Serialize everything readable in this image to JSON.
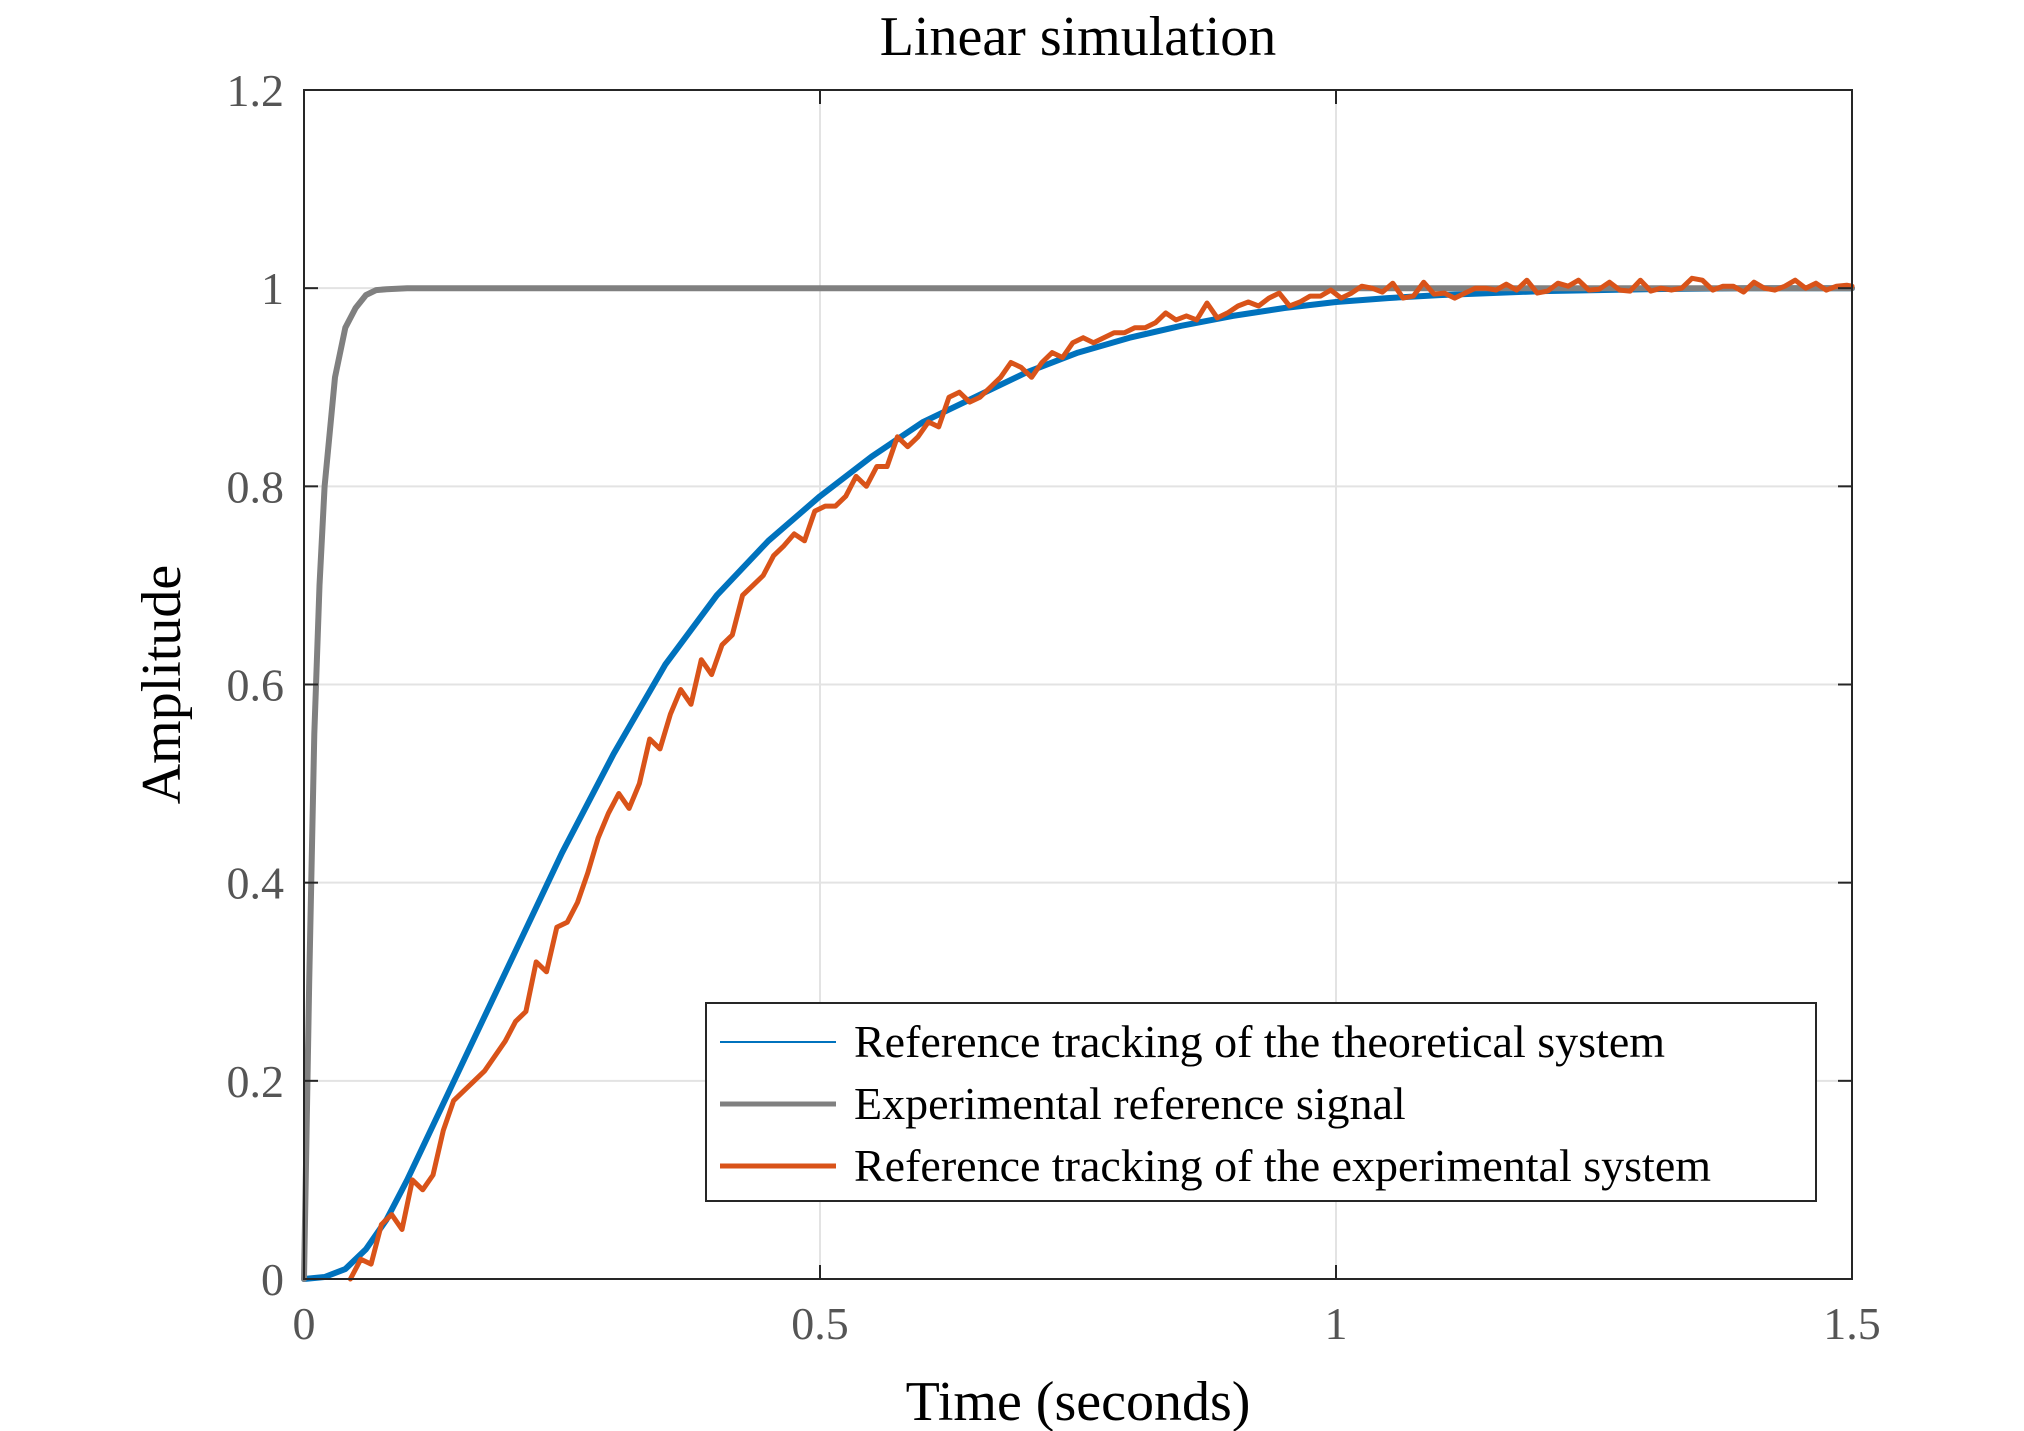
{
  "chart_data": {
    "type": "line",
    "title": "Linear simulation",
    "xlabel": "Time (seconds)",
    "ylabel": "Amplitude",
    "xlim": [
      0,
      1.5
    ],
    "ylim": [
      0,
      1.2
    ],
    "xticks": [
      0,
      0.5,
      1,
      1.5
    ],
    "xtick_labels": [
      "0",
      "0.5",
      "1",
      "1.5"
    ],
    "yticks": [
      0,
      0.2,
      0.4,
      0.6,
      0.8,
      1,
      1.2
    ],
    "ytick_labels": [
      "0",
      "0.2",
      "0.4",
      "0.6",
      "0.8",
      "1",
      "1.2"
    ],
    "grid": true,
    "legend_position": "bottom-right",
    "series": [
      {
        "name": "Reference tracking of the theoretical system",
        "color": "#0072BD",
        "x": [
          0,
          0.02,
          0.04,
          0.06,
          0.08,
          0.1,
          0.125,
          0.15,
          0.175,
          0.2,
          0.25,
          0.3,
          0.35,
          0.4,
          0.45,
          0.5,
          0.55,
          0.6,
          0.65,
          0.7,
          0.75,
          0.8,
          0.85,
          0.9,
          0.95,
          1,
          1.05,
          1.1,
          1.2,
          1.3,
          1.4,
          1.5
        ],
        "y": [
          0,
          0.002,
          0.01,
          0.03,
          0.06,
          0.1,
          0.155,
          0.21,
          0.265,
          0.32,
          0.43,
          0.53,
          0.62,
          0.69,
          0.745,
          0.79,
          0.83,
          0.865,
          0.89,
          0.915,
          0.935,
          0.95,
          0.962,
          0.972,
          0.98,
          0.986,
          0.99,
          0.993,
          0.997,
          0.999,
          1.0,
          1.0
        ]
      },
      {
        "name": "Experimental reference signal",
        "color": "#808080",
        "x": [
          0,
          0.005,
          0.01,
          0.015,
          0.02,
          0.03,
          0.04,
          0.05,
          0.06,
          0.07,
          0.08,
          0.1,
          0.15,
          1.5
        ],
        "y": [
          0,
          0.3,
          0.55,
          0.7,
          0.8,
          0.91,
          0.96,
          0.98,
          0.993,
          0.998,
          0.999,
          1.0,
          1.0,
          1.0
        ]
      },
      {
        "name": "Reference tracking of the experimental system",
        "color": "#D95319",
        "x": [
          0.045,
          0.055,
          0.065,
          0.075,
          0.085,
          0.095,
          0.105,
          0.115,
          0.125,
          0.135,
          0.145,
          0.155,
          0.165,
          0.175,
          0.185,
          0.195,
          0.205,
          0.215,
          0.225,
          0.235,
          0.245,
          0.255,
          0.265,
          0.275,
          0.285,
          0.295,
          0.305,
          0.315,
          0.325,
          0.335,
          0.345,
          0.355,
          0.365,
          0.375,
          0.385,
          0.395,
          0.405,
          0.415,
          0.425,
          0.435,
          0.445,
          0.455,
          0.465,
          0.475,
          0.485,
          0.495,
          0.505,
          0.515,
          0.525,
          0.535,
          0.545,
          0.555,
          0.565,
          0.575,
          0.585,
          0.595,
          0.605,
          0.615,
          0.625,
          0.635,
          0.645,
          0.655,
          0.665,
          0.675,
          0.685,
          0.695,
          0.705,
          0.715,
          0.725,
          0.735,
          0.745,
          0.755,
          0.765,
          0.775,
          0.785,
          0.795,
          0.805,
          0.815,
          0.825,
          0.835,
          0.845,
          0.855,
          0.865,
          0.875,
          0.885,
          0.895,
          0.905,
          0.915,
          0.925,
          0.935,
          0.945,
          0.955,
          0.965,
          0.975,
          0.985,
          0.995,
          1.005,
          1.015,
          1.025,
          1.035,
          1.045,
          1.055,
          1.065,
          1.075,
          1.085,
          1.095,
          1.105,
          1.115,
          1.125,
          1.135,
          1.145,
          1.155,
          1.165,
          1.175,
          1.185,
          1.195,
          1.205,
          1.215,
          1.225,
          1.235,
          1.245,
          1.255,
          1.265,
          1.275,
          1.285,
          1.295,
          1.305,
          1.315,
          1.325,
          1.335,
          1.345,
          1.355,
          1.365,
          1.375,
          1.385,
          1.395,
          1.405,
          1.415,
          1.425,
          1.435,
          1.445,
          1.455,
          1.465,
          1.475,
          1.485,
          1.495,
          1.5
        ],
        "y": [
          0,
          0.02,
          0.015,
          0.055,
          0.065,
          0.05,
          0.1,
          0.09,
          0.105,
          0.15,
          0.18,
          0.19,
          0.2,
          0.21,
          0.225,
          0.24,
          0.26,
          0.27,
          0.32,
          0.31,
          0.355,
          0.36,
          0.38,
          0.41,
          0.445,
          0.47,
          0.49,
          0.475,
          0.5,
          0.545,
          0.535,
          0.57,
          0.595,
          0.58,
          0.625,
          0.61,
          0.64,
          0.65,
          0.69,
          0.7,
          0.71,
          0.73,
          0.74,
          0.752,
          0.745,
          0.775,
          0.78,
          0.78,
          0.79,
          0.81,
          0.8,
          0.82,
          0.82,
          0.85,
          0.84,
          0.85,
          0.865,
          0.86,
          0.89,
          0.895,
          0.885,
          0.89,
          0.9,
          0.91,
          0.925,
          0.92,
          0.91,
          0.925,
          0.935,
          0.93,
          0.945,
          0.95,
          0.945,
          0.95,
          0.955,
          0.955,
          0.96,
          0.96,
          0.965,
          0.975,
          0.968,
          0.972,
          0.968,
          0.985,
          0.97,
          0.975,
          0.982,
          0.986,
          0.982,
          0.99,
          0.995,
          0.982,
          0.986,
          0.992,
          0.992,
          0.998,
          0.99,
          0.995,
          1.002,
          1.0,
          0.996,
          1.005,
          0.99,
          0.992,
          1.006,
          0.994,
          0.995,
          0.99,
          0.995,
          1.0,
          1.0,
          0.998,
          1.004,
          0.998,
          1.008,
          0.995,
          0.997,
          1.005,
          1.002,
          1.008,
          0.998,
          0.999,
          1.006,
          0.998,
          0.997,
          1.008,
          0.997,
          1.0,
          0.998,
          1.0,
          1.01,
          1.008,
          0.998,
          1.002,
          1.002,
          0.996,
          1.006,
          1.0,
          0.998,
          1.002,
          1.008,
          1.0,
          1.005,
          0.998,
          1.002,
          1.003,
          1.002
        ]
      }
    ]
  }
}
